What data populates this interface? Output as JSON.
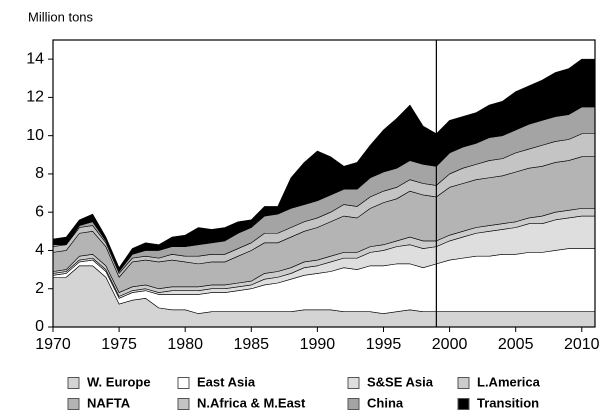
{
  "chart_data": {
    "type": "stacked-area",
    "y_label": "Million tons",
    "x": [
      1970,
      1971,
      1972,
      1973,
      1974,
      1975,
      1976,
      1977,
      1978,
      1979,
      1980,
      1981,
      1982,
      1983,
      1984,
      1985,
      1986,
      1987,
      1988,
      1989,
      1990,
      1991,
      1992,
      1993,
      1994,
      1995,
      1996,
      1997,
      1998,
      1999,
      2000,
      2001,
      2002,
      2003,
      2004,
      2005,
      2006,
      2007,
      2008,
      2009,
      2010,
      2011
    ],
    "xlim": [
      1970,
      2011
    ],
    "xticks": [
      1970,
      1975,
      1980,
      1985,
      1990,
      1995,
      2000,
      2005,
      2010
    ],
    "ylim": [
      0,
      15
    ],
    "yticks": [
      0,
      2,
      4,
      6,
      8,
      10,
      12,
      14
    ],
    "vline": 1999,
    "series": [
      {
        "name": "W. Europe",
        "color": "#d4d4d4",
        "values": [
          2.6,
          2.6,
          3.2,
          3.2,
          2.6,
          1.2,
          1.4,
          1.5,
          1.0,
          0.9,
          0.9,
          0.7,
          0.8,
          0.8,
          0.8,
          0.8,
          0.8,
          0.8,
          0.8,
          0.9,
          0.9,
          0.9,
          0.8,
          0.8,
          0.8,
          0.7,
          0.8,
          0.9,
          0.8,
          0.8,
          0.8,
          0.8,
          0.8,
          0.8,
          0.8,
          0.8,
          0.8,
          0.8,
          0.8,
          0.8,
          0.8,
          0.8
        ]
      },
      {
        "name": "East Asia",
        "color": "#ffffff",
        "values": [
          0.1,
          0.2,
          0.2,
          0.3,
          0.3,
          0.3,
          0.4,
          0.4,
          0.7,
          0.8,
          0.8,
          1.0,
          1.0,
          1.0,
          1.1,
          1.2,
          1.4,
          1.5,
          1.7,
          1.8,
          1.9,
          2.0,
          2.3,
          2.2,
          2.4,
          2.5,
          2.5,
          2.4,
          2.3,
          2.5,
          2.7,
          2.8,
          2.9,
          2.9,
          3.0,
          3.0,
          3.1,
          3.1,
          3.2,
          3.3,
          3.3,
          3.3
        ]
      },
      {
        "name": "S&SE Asia",
        "color": "#dedede",
        "values": [
          0.1,
          0.1,
          0.1,
          0.1,
          0.1,
          0.1,
          0.1,
          0.1,
          0.1,
          0.2,
          0.2,
          0.2,
          0.2,
          0.2,
          0.2,
          0.2,
          0.3,
          0.3,
          0.3,
          0.4,
          0.4,
          0.5,
          0.5,
          0.6,
          0.7,
          0.8,
          0.9,
          1.0,
          1.0,
          0.9,
          1.0,
          1.1,
          1.2,
          1.3,
          1.3,
          1.4,
          1.5,
          1.5,
          1.6,
          1.6,
          1.7,
          1.7
        ]
      },
      {
        "name": "L.America",
        "color": "#cccccc",
        "values": [
          0.1,
          0.1,
          0.2,
          0.2,
          0.2,
          0.2,
          0.2,
          0.2,
          0.2,
          0.2,
          0.2,
          0.2,
          0.2,
          0.2,
          0.2,
          0.2,
          0.3,
          0.3,
          0.3,
          0.3,
          0.3,
          0.3,
          0.3,
          0.3,
          0.3,
          0.3,
          0.3,
          0.4,
          0.4,
          0.3,
          0.3,
          0.3,
          0.3,
          0.3,
          0.3,
          0.3,
          0.3,
          0.4,
          0.4,
          0.4,
          0.4,
          0.4
        ]
      },
      {
        "name": "NAFTA",
        "color": "#b4b4b4",
        "values": [
          1.0,
          1.0,
          1.2,
          1.2,
          1.0,
          0.8,
          1.3,
          1.3,
          1.4,
          1.4,
          1.3,
          1.2,
          1.2,
          1.2,
          1.4,
          1.6,
          1.6,
          1.5,
          1.6,
          1.6,
          1.7,
          1.8,
          1.9,
          1.8,
          2.0,
          2.2,
          2.2,
          2.4,
          2.4,
          2.3,
          2.5,
          2.5,
          2.5,
          2.5,
          2.5,
          2.6,
          2.6,
          2.6,
          2.6,
          2.6,
          2.7,
          2.7
        ]
      },
      {
        "name": "N.Africa & M.East",
        "color": "#c4c4c4",
        "values": [
          0.3,
          0.3,
          0.3,
          0.3,
          0.2,
          0.2,
          0.2,
          0.2,
          0.2,
          0.3,
          0.3,
          0.4,
          0.4,
          0.4,
          0.4,
          0.4,
          0.5,
          0.5,
          0.5,
          0.5,
          0.5,
          0.5,
          0.6,
          0.6,
          0.6,
          0.6,
          0.6,
          0.6,
          0.6,
          0.6,
          0.7,
          0.8,
          0.8,
          0.9,
          0.9,
          1.0,
          1.0,
          1.1,
          1.1,
          1.1,
          1.2,
          1.2
        ]
      },
      {
        "name": "China",
        "color": "#a4a4a4",
        "values": [
          0.1,
          0.0,
          0.1,
          0.2,
          0.1,
          0.1,
          0.2,
          0.3,
          0.4,
          0.4,
          0.5,
          0.6,
          0.6,
          0.7,
          0.8,
          0.8,
          0.9,
          1.0,
          1.0,
          0.9,
          0.9,
          0.9,
          0.8,
          0.9,
          1.0,
          1.0,
          1.0,
          1.0,
          1.0,
          1.0,
          1.1,
          1.1,
          1.1,
          1.2,
          1.2,
          1.2,
          1.3,
          1.3,
          1.3,
          1.3,
          1.4,
          1.4
        ]
      },
      {
        "name": "Transition",
        "color": "#000000",
        "values": [
          0.3,
          0.4,
          0.3,
          0.4,
          0.2,
          0.2,
          0.3,
          0.4,
          0.3,
          0.5,
          0.6,
          0.9,
          0.7,
          0.7,
          0.6,
          0.4,
          0.5,
          0.4,
          1.6,
          2.2,
          2.6,
          2.0,
          1.2,
          1.4,
          1.7,
          2.2,
          2.6,
          2.9,
          2.0,
          1.7,
          1.7,
          1.6,
          1.6,
          1.7,
          1.8,
          2.0,
          2.0,
          2.1,
          2.3,
          2.4,
          2.5,
          2.5
        ]
      }
    ]
  }
}
